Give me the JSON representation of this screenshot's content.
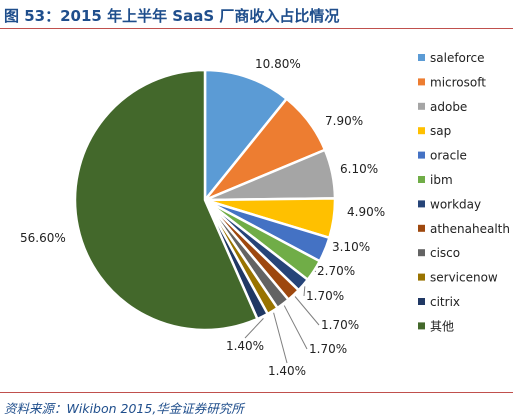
{
  "header": {
    "title": "图 53：2015 年上半年 SaaS 厂商收入占比情况"
  },
  "footer": {
    "source": "资料来源：Wikibon 2015,华金证券研究所"
  },
  "chart_data": {
    "type": "pie",
    "title": "",
    "legend_position": "right",
    "labels": [
      "saleforce",
      "microsoft",
      "adobe",
      "sap",
      "oracle",
      "ibm",
      "workday",
      "athenahealth",
      "cisco",
      "servicenow",
      "citrix",
      "其他"
    ],
    "values": [
      10.8,
      7.9,
      6.1,
      4.9,
      3.1,
      2.7,
      1.7,
      1.7,
      1.7,
      1.4,
      1.4,
      56.6
    ],
    "value_labels": [
      "10.80%",
      "7.90%",
      "6.10%",
      "4.90%",
      "3.10%",
      "2.70%",
      "1.70%",
      "1.70%",
      "1.70%",
      "1.40%",
      "1.40%",
      "56.60%"
    ],
    "colors": [
      "#5b9bd5",
      "#ed7d31",
      "#a5a5a5",
      "#ffc000",
      "#4472c4",
      "#70ad47",
      "#264478",
      "#9e480e",
      "#636363",
      "#997300",
      "#203864",
      "#43682b"
    ]
  }
}
